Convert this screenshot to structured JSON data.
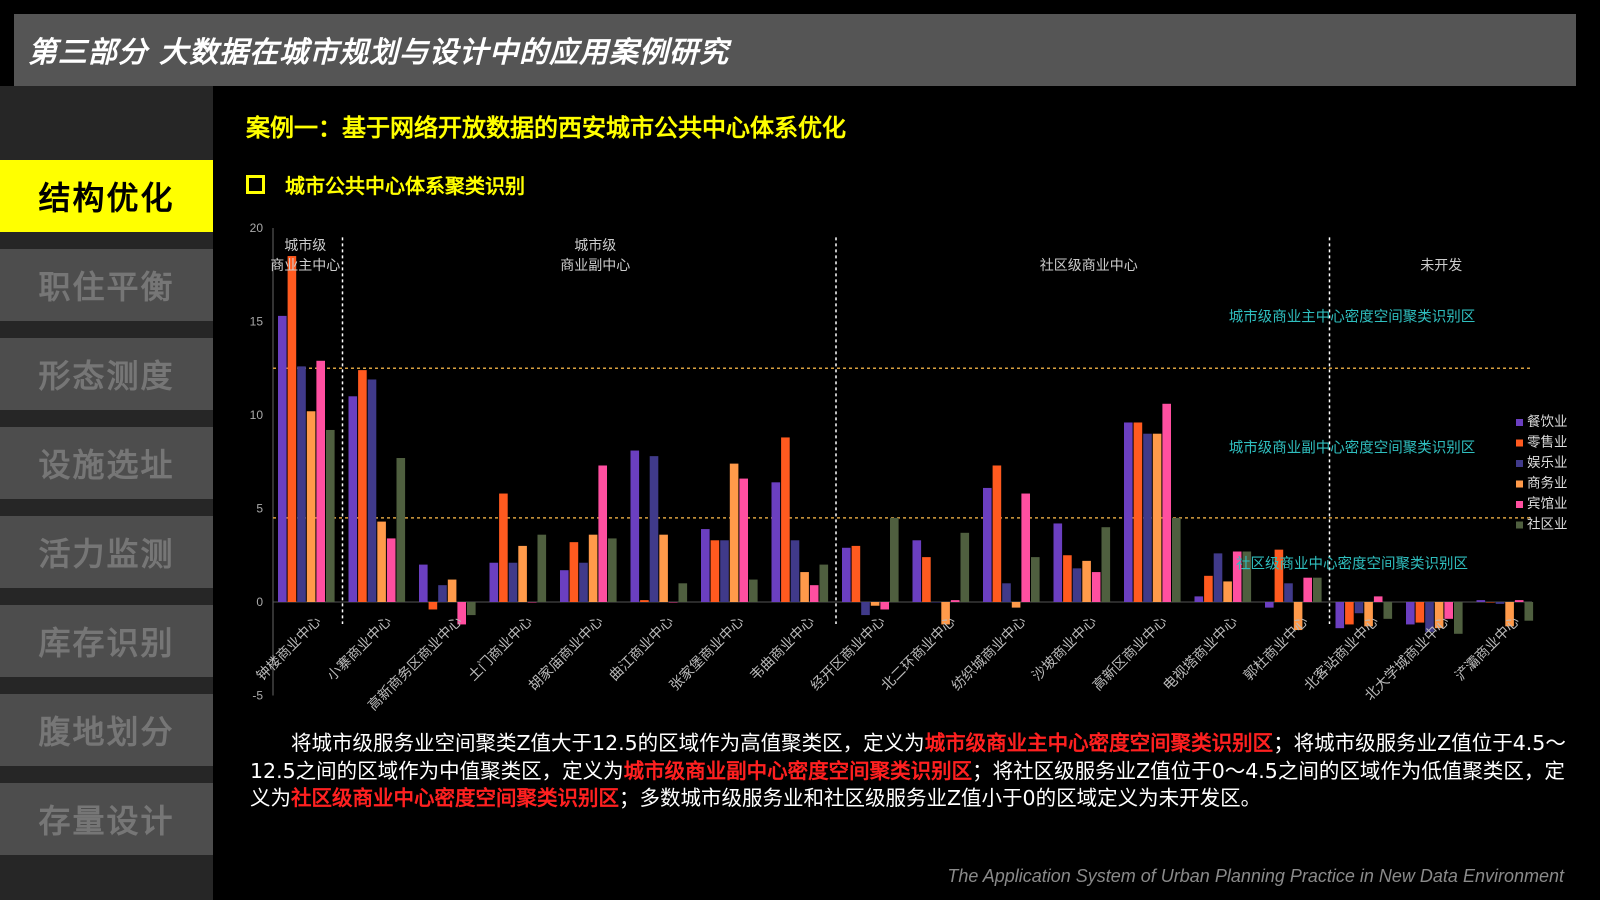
{
  "header": {
    "title": "第三部分  大数据在城市规划与设计中的应用案例研究"
  },
  "sidebar": {
    "items": [
      {
        "label": "结构优化",
        "active": true
      },
      {
        "label": "职住平衡",
        "active": false
      },
      {
        "label": "形态测度",
        "active": false
      },
      {
        "label": "设施选址",
        "active": false
      },
      {
        "label": "活力监测",
        "active": false
      },
      {
        "label": "库存识别",
        "active": false
      },
      {
        "label": "腹地划分",
        "active": false
      },
      {
        "label": "存量设计",
        "active": false
      }
    ]
  },
  "main": {
    "case_title": "案例一：基于网络开放数据的西安城市公共中心体系优化",
    "section_title": "城市公共中心体系聚类识别",
    "paragraph": [
      {
        "t": "将城市级服务业空间聚类Z值大于12.5的区域作为高值聚类区，定义为"
      },
      {
        "t": "城市级商业主中心密度空间聚类识别区",
        "hl": true
      },
      {
        "t": "；将城市级服务业Z值位于4.5～12.5之间的区域作为中值聚类区，定义为"
      },
      {
        "t": "城市级商业副中心密度空间聚类识别区",
        "hl": true
      },
      {
        "t": "；将社区级服务业Z值位于0～4.5之间的区域作为低值聚类区，定义为"
      },
      {
        "t": "社区级商业中心密度空间聚类识别区",
        "hl": true
      },
      {
        "t": "；多数城市级服务业和社区级服务业Z值小于0的区域定义为未开发区。"
      }
    ],
    "footer": "The Application System of Urban Planning Practice in New Data Environment"
  },
  "colors": {
    "accent": "#ffff00",
    "highlight": "#ff2020",
    "threshold_line": "#d9a040",
    "zone_label": "#2fbfbf"
  },
  "chart_data": {
    "type": "bar",
    "ylim": [
      -5,
      20
    ],
    "yticks": [
      -5,
      0,
      5,
      10,
      15,
      20
    ],
    "categories": [
      "钟楼商业中心",
      "小寨商业中心",
      "高新商务区商业中心",
      "土门商业中心",
      "胡家庙商业中心",
      "曲江商业中心",
      "张家堡商业中心",
      "韦曲商业中心",
      "经开区商业中心",
      "北二环商业中心",
      "纺织城商业中心",
      "沙坡商业中心",
      "高新区商业中心",
      "电视塔商业中心",
      "郭杜商业中心",
      "北客站商业中心",
      "北大学城商业中心",
      "浐灞商业中心"
    ],
    "series": [
      {
        "name": "餐饮业",
        "color": "#6b3fc0",
        "values": [
          15.3,
          11.0,
          2.0,
          2.1,
          1.7,
          8.1,
          3.9,
          6.4,
          2.9,
          3.3,
          6.1,
          4.2,
          9.6,
          0.3,
          -0.3,
          -1.4,
          -1.2,
          0.1
        ]
      },
      {
        "name": "零售业",
        "color": "#ff5a1f",
        "values": [
          18.5,
          12.4,
          -0.4,
          5.8,
          3.2,
          0.1,
          3.3,
          8.8,
          3.0,
          2.4,
          7.3,
          2.5,
          9.6,
          1.4,
          2.8,
          -1.2,
          -1.1,
          0.0
        ]
      },
      {
        "name": "娱乐业",
        "color": "#403a8a",
        "values": [
          12.6,
          11.9,
          0.9,
          2.1,
          2.1,
          7.8,
          3.3,
          3.3,
          -0.7,
          0.0,
          1.0,
          1.8,
          9.0,
          2.6,
          1.0,
          -0.6,
          -1.6,
          -0.1
        ]
      },
      {
        "name": "商务业",
        "color": "#ff9a4a",
        "values": [
          10.2,
          4.3,
          1.2,
          3.0,
          3.6,
          3.6,
          7.4,
          1.6,
          -0.2,
          -1.2,
          -0.3,
          2.2,
          9.0,
          1.1,
          -1.5,
          -1.3,
          -1.4,
          -1.3
        ]
      },
      {
        "name": "宾馆业",
        "color": "#ff4fa0",
        "values": [
          12.9,
          3.4,
          -1.2,
          0.0,
          7.3,
          0.0,
          6.6,
          0.9,
          -0.4,
          0.1,
          5.8,
          1.6,
          10.6,
          2.7,
          1.3,
          0.3,
          -0.9,
          0.1
        ]
      },
      {
        "name": "社区业",
        "color": "#4f5f3f",
        "values": [
          9.2,
          7.7,
          -0.7,
          3.6,
          3.4,
          1.0,
          1.2,
          2.0,
          4.5,
          3.7,
          2.4,
          4.0,
          4.5,
          2.7,
          1.3,
          -0.9,
          -1.7,
          -1.0
        ]
      }
    ],
    "thresholds": [
      12.5,
      4.5
    ],
    "groups": [
      {
        "label": "城市级\n商业主中心",
        "count": 1
      },
      {
        "label": "城市级\n商业副中心",
        "count": 7
      },
      {
        "label": "社区级商业中心",
        "count": 7
      },
      {
        "label": "未开发",
        "count": 3
      }
    ],
    "zone_labels": [
      {
        "text": "城市级商业主中心密度空间聚类识别区",
        "y": 15
      },
      {
        "text": "城市级商业副中心密度空间聚类识别区",
        "y": 8
      },
      {
        "text": "社区级商业中心密度空间聚类识别区",
        "y": 1.8
      }
    ],
    "legend_position": "right",
    "grid": false
  }
}
